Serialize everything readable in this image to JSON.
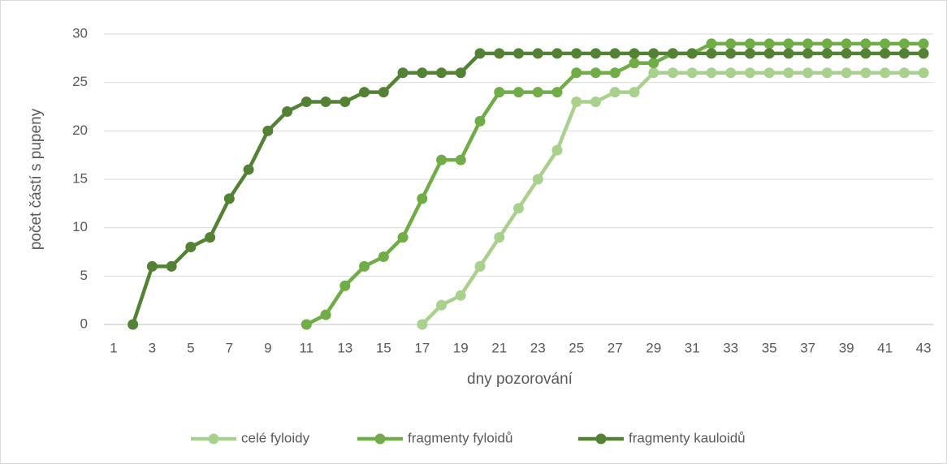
{
  "chart_data": {
    "type": "line",
    "x_label": "dny pozorování",
    "y_label": "počet částí s pupeny",
    "categories": [
      1,
      null,
      3,
      null,
      5,
      null,
      7,
      null,
      9,
      null,
      11,
      null,
      13,
      null,
      15,
      null,
      17,
      null,
      19,
      null,
      21,
      null,
      23,
      null,
      25,
      null,
      27,
      null,
      29,
      null,
      31,
      null,
      33,
      null,
      35,
      null,
      37,
      null,
      39,
      null,
      41,
      null,
      43
    ],
    "ylim": [
      0,
      30
    ],
    "yticks": [
      0,
      5,
      10,
      15,
      20,
      25,
      30
    ],
    "grid": true,
    "legend": "bottom",
    "series": [
      {
        "name": "celé fyloidy",
        "color": "#a9d18e",
        "values": [
          null,
          null,
          null,
          null,
          null,
          null,
          null,
          null,
          null,
          null,
          null,
          null,
          null,
          null,
          null,
          null,
          0,
          2,
          3,
          6,
          9,
          12,
          15,
          18,
          23,
          23,
          24,
          24,
          26,
          26,
          26,
          26,
          26,
          26,
          26,
          26,
          26,
          26,
          26,
          26,
          26,
          26,
          26
        ]
      },
      {
        "name": "fragmenty fyloidů",
        "color": "#70ad47",
        "values": [
          null,
          null,
          null,
          null,
          null,
          null,
          null,
          null,
          null,
          null,
          0,
          1,
          4,
          6,
          7,
          9,
          13,
          17,
          17,
          21,
          24,
          24,
          24,
          24,
          26,
          26,
          26,
          27,
          27,
          28,
          28,
          29,
          29,
          29,
          29,
          29,
          29,
          29,
          29,
          29,
          29,
          29,
          29
        ]
      },
      {
        "name": "fragmenty kauloidů",
        "color": "#548235",
        "values": [
          null,
          0,
          6,
          6,
          8,
          9,
          13,
          16,
          20,
          22,
          23,
          23,
          23,
          24,
          24,
          26,
          26,
          26,
          26,
          28,
          28,
          28,
          28,
          28,
          28,
          28,
          28,
          28,
          28,
          28,
          28,
          28,
          28,
          28,
          28,
          28,
          28,
          28,
          28,
          28,
          28,
          28,
          28
        ]
      }
    ]
  }
}
